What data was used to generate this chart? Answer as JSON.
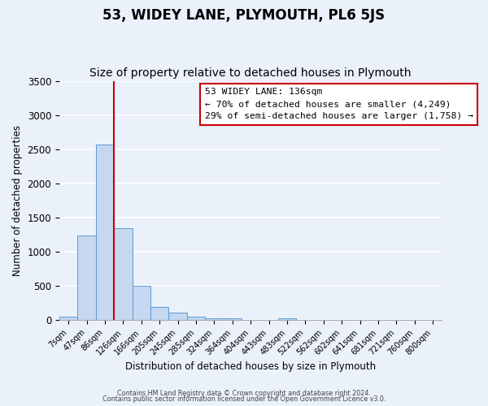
{
  "title": "53, WIDEY LANE, PLYMOUTH, PL6 5JS",
  "subtitle": "Size of property relative to detached houses in Plymouth",
  "xlabel": "Distribution of detached houses by size in Plymouth",
  "ylabel": "Number of detached properties",
  "bar_labels": [
    "7sqm",
    "47sqm",
    "86sqm",
    "126sqm",
    "166sqm",
    "205sqm",
    "245sqm",
    "285sqm",
    "324sqm",
    "364sqm",
    "404sqm",
    "443sqm",
    "483sqm",
    "522sqm",
    "562sqm",
    "602sqm",
    "641sqm",
    "681sqm",
    "721sqm",
    "760sqm",
    "800sqm"
  ],
  "all_bar_values": [
    50,
    1240,
    2570,
    1340,
    500,
    195,
    110,
    45,
    30,
    25,
    0,
    0,
    25,
    0,
    0,
    0,
    0,
    0,
    0,
    0,
    0
  ],
  "bar_color": "#c5d8f0",
  "bar_edge_color": "#5b9bd5",
  "vline_color": "#cc0000",
  "annotation_title": "53 WIDEY LANE: 136sqm",
  "annotation_line1": "← 70% of detached houses are smaller (4,249)",
  "annotation_line2": "29% of semi-detached houses are larger (1,758) →",
  "annotation_box_color": "#ffffff",
  "annotation_box_edge": "#cc0000",
  "ylim": [
    0,
    3500
  ],
  "footer1": "Contains HM Land Registry data © Crown copyright and database right 2024.",
  "footer2": "Contains public sector information licensed under the Open Government Licence v3.0.",
  "background_color": "#eaf1fb",
  "plot_bg_color": "#eaf1fb",
  "grid_color": "#ffffff",
  "title_fontsize": 12,
  "subtitle_fontsize": 10
}
